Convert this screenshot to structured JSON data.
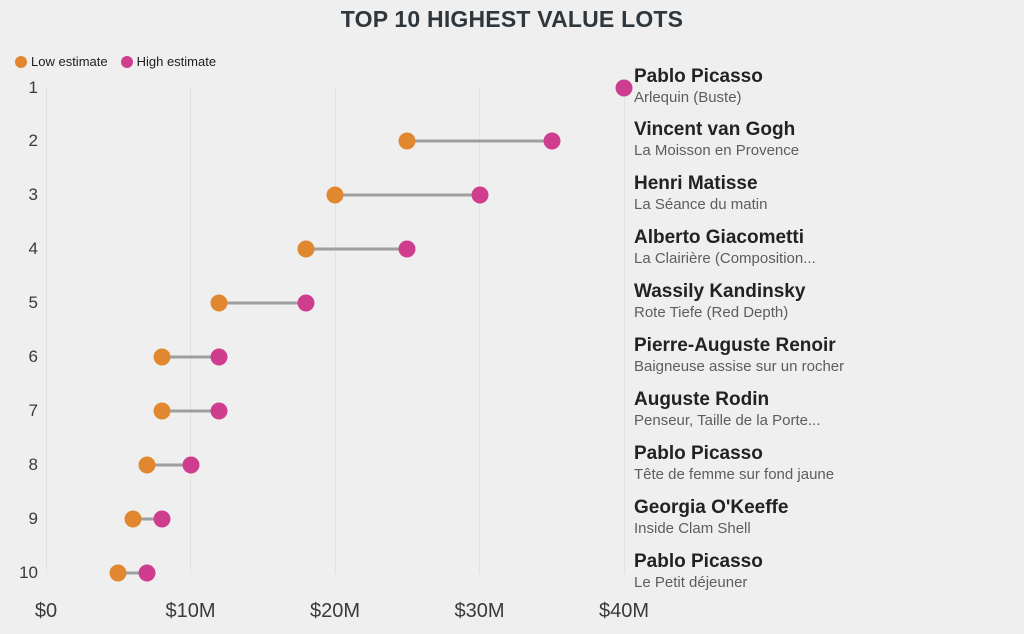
{
  "title": "TOP 10 HIGHEST VALUE LOTS",
  "legend": {
    "items": [
      {
        "label": "Low estimate",
        "color": "#e1872f"
      },
      {
        "label": "High estimate",
        "color": "#ce3d8e"
      }
    ]
  },
  "colors": {
    "background": "#efefef",
    "low_estimate": "#e1872f",
    "high_estimate": "#ce3d8e",
    "connector": "#9f9f9f",
    "gridline": "#e2e2e2",
    "title_text": "#2f373c",
    "axis_text": "#3a3a3a",
    "artist_text": "#222222",
    "work_text": "#5d5d5d"
  },
  "chart_data": {
    "type": "dumbbell",
    "title": "TOP 10 HIGHEST VALUE LOTS",
    "xlabel": "",
    "ylabel": "",
    "unit": "USD millions",
    "grid": "vertical-only",
    "legend_position": "top-left",
    "x_axis": {
      "ticks": [
        0,
        10,
        20,
        30,
        40
      ],
      "tick_labels": [
        "$0",
        "$10M",
        "$20M",
        "$30M",
        "$40M"
      ],
      "xlim": [
        0,
        42
      ]
    },
    "y_axis": {
      "categories": [
        "1",
        "2",
        "3",
        "4",
        "5",
        "6",
        "7",
        "8",
        "9",
        "10"
      ]
    },
    "series": [
      {
        "name": "Low estimate",
        "color": "#e1872f",
        "values": [
          null,
          25,
          20,
          18,
          12,
          8,
          8,
          7,
          6,
          5
        ]
      },
      {
        "name": "High estimate",
        "color": "#ce3d8e",
        "values": [
          40,
          35,
          30,
          25,
          18,
          12,
          12,
          10,
          8,
          7
        ]
      }
    ],
    "rows": [
      {
        "rank": "1",
        "artist": "Pablo Picasso",
        "work": "Arlequin (Buste)",
        "low": null,
        "high": 40
      },
      {
        "rank": "2",
        "artist": "Vincent van Gogh",
        "work": "La Moisson en Provence",
        "low": 25,
        "high": 35
      },
      {
        "rank": "3",
        "artist": "Henri Matisse",
        "work": "La Séance du matin",
        "low": 20,
        "high": 30
      },
      {
        "rank": "4",
        "artist": "Alberto Giacometti",
        "work": "La Clairière (Composition...",
        "low": 18,
        "high": 25
      },
      {
        "rank": "5",
        "artist": "Wassily Kandinsky",
        "work": "Rote Tiefe (Red Depth)",
        "low": 12,
        "high": 18
      },
      {
        "rank": "6",
        "artist": "Pierre-Auguste Renoir",
        "work": "Baigneuse assise sur un rocher",
        "low": 8,
        "high": 12
      },
      {
        "rank": "7",
        "artist": "Auguste Rodin",
        "work": "Penseur, Taille de la Porte...",
        "low": 8,
        "high": 12
      },
      {
        "rank": "8",
        "artist": "Pablo Picasso",
        "work": "Tête de femme sur fond jaune",
        "low": 7,
        "high": 10
      },
      {
        "rank": "9",
        "artist": "Georgia O'Keeffe",
        "work": "Inside Clam Shell",
        "low": 6,
        "high": 8
      },
      {
        "rank": "10",
        "artist": "Pablo Picasso",
        "work": "Le Petit déjeuner",
        "low": 5,
        "high": 7
      }
    ]
  }
}
